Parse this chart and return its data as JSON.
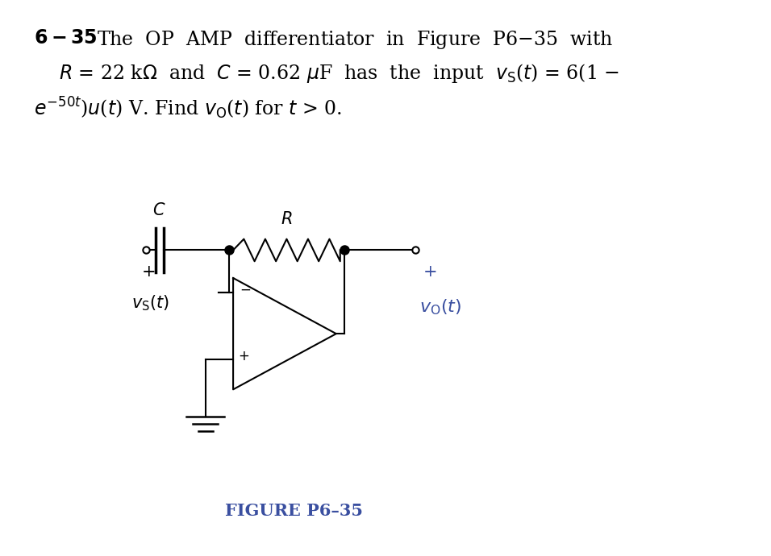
{
  "bg_color": "#ffffff",
  "text_color": "#000000",
  "blue_color": "#3a4fa0",
  "fig_label": "FIGURE P6–35",
  "figsize": [
    9.56,
    6.9
  ],
  "dpi": 100
}
